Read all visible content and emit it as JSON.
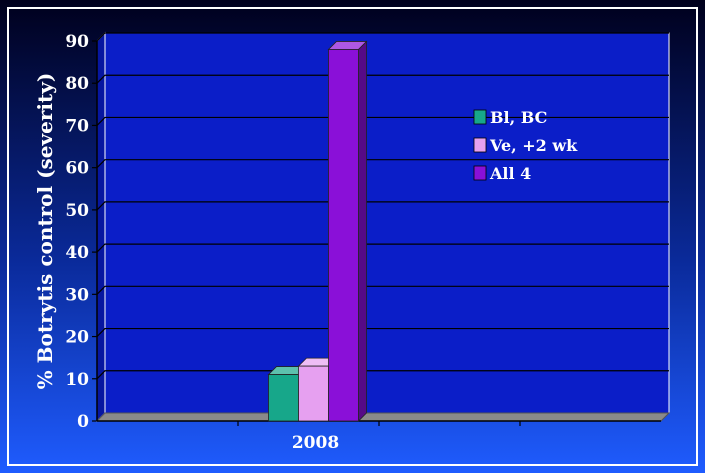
{
  "chart_data": {
    "type": "bar",
    "categories": [
      "2008"
    ],
    "series": [
      {
        "name": "Bl, BC",
        "values": [
          11
        ],
        "color": "#17a78a"
      },
      {
        "name": "Ve, +2 wk",
        "values": [
          13
        ],
        "color": "#e6a0f0"
      },
      {
        "name": "All 4",
        "values": [
          88
        ],
        "color": "#8a10d8"
      }
    ],
    "title": "",
    "xlabel": "",
    "ylabel": "% Botrytis control (severity)",
    "ylim": [
      0,
      90
    ],
    "yticks": [
      0,
      10,
      20,
      30,
      40,
      50,
      60,
      70,
      80,
      90
    ],
    "grid": true,
    "legend_position": "right",
    "three_d": true,
    "colors": {
      "background_top": "#00001c",
      "background_bottom": "#1f5cff",
      "frame": "#ffffff",
      "plot_area": "#0b1ec8",
      "gridline": "#000000",
      "floor": "#8a8a8a"
    }
  }
}
